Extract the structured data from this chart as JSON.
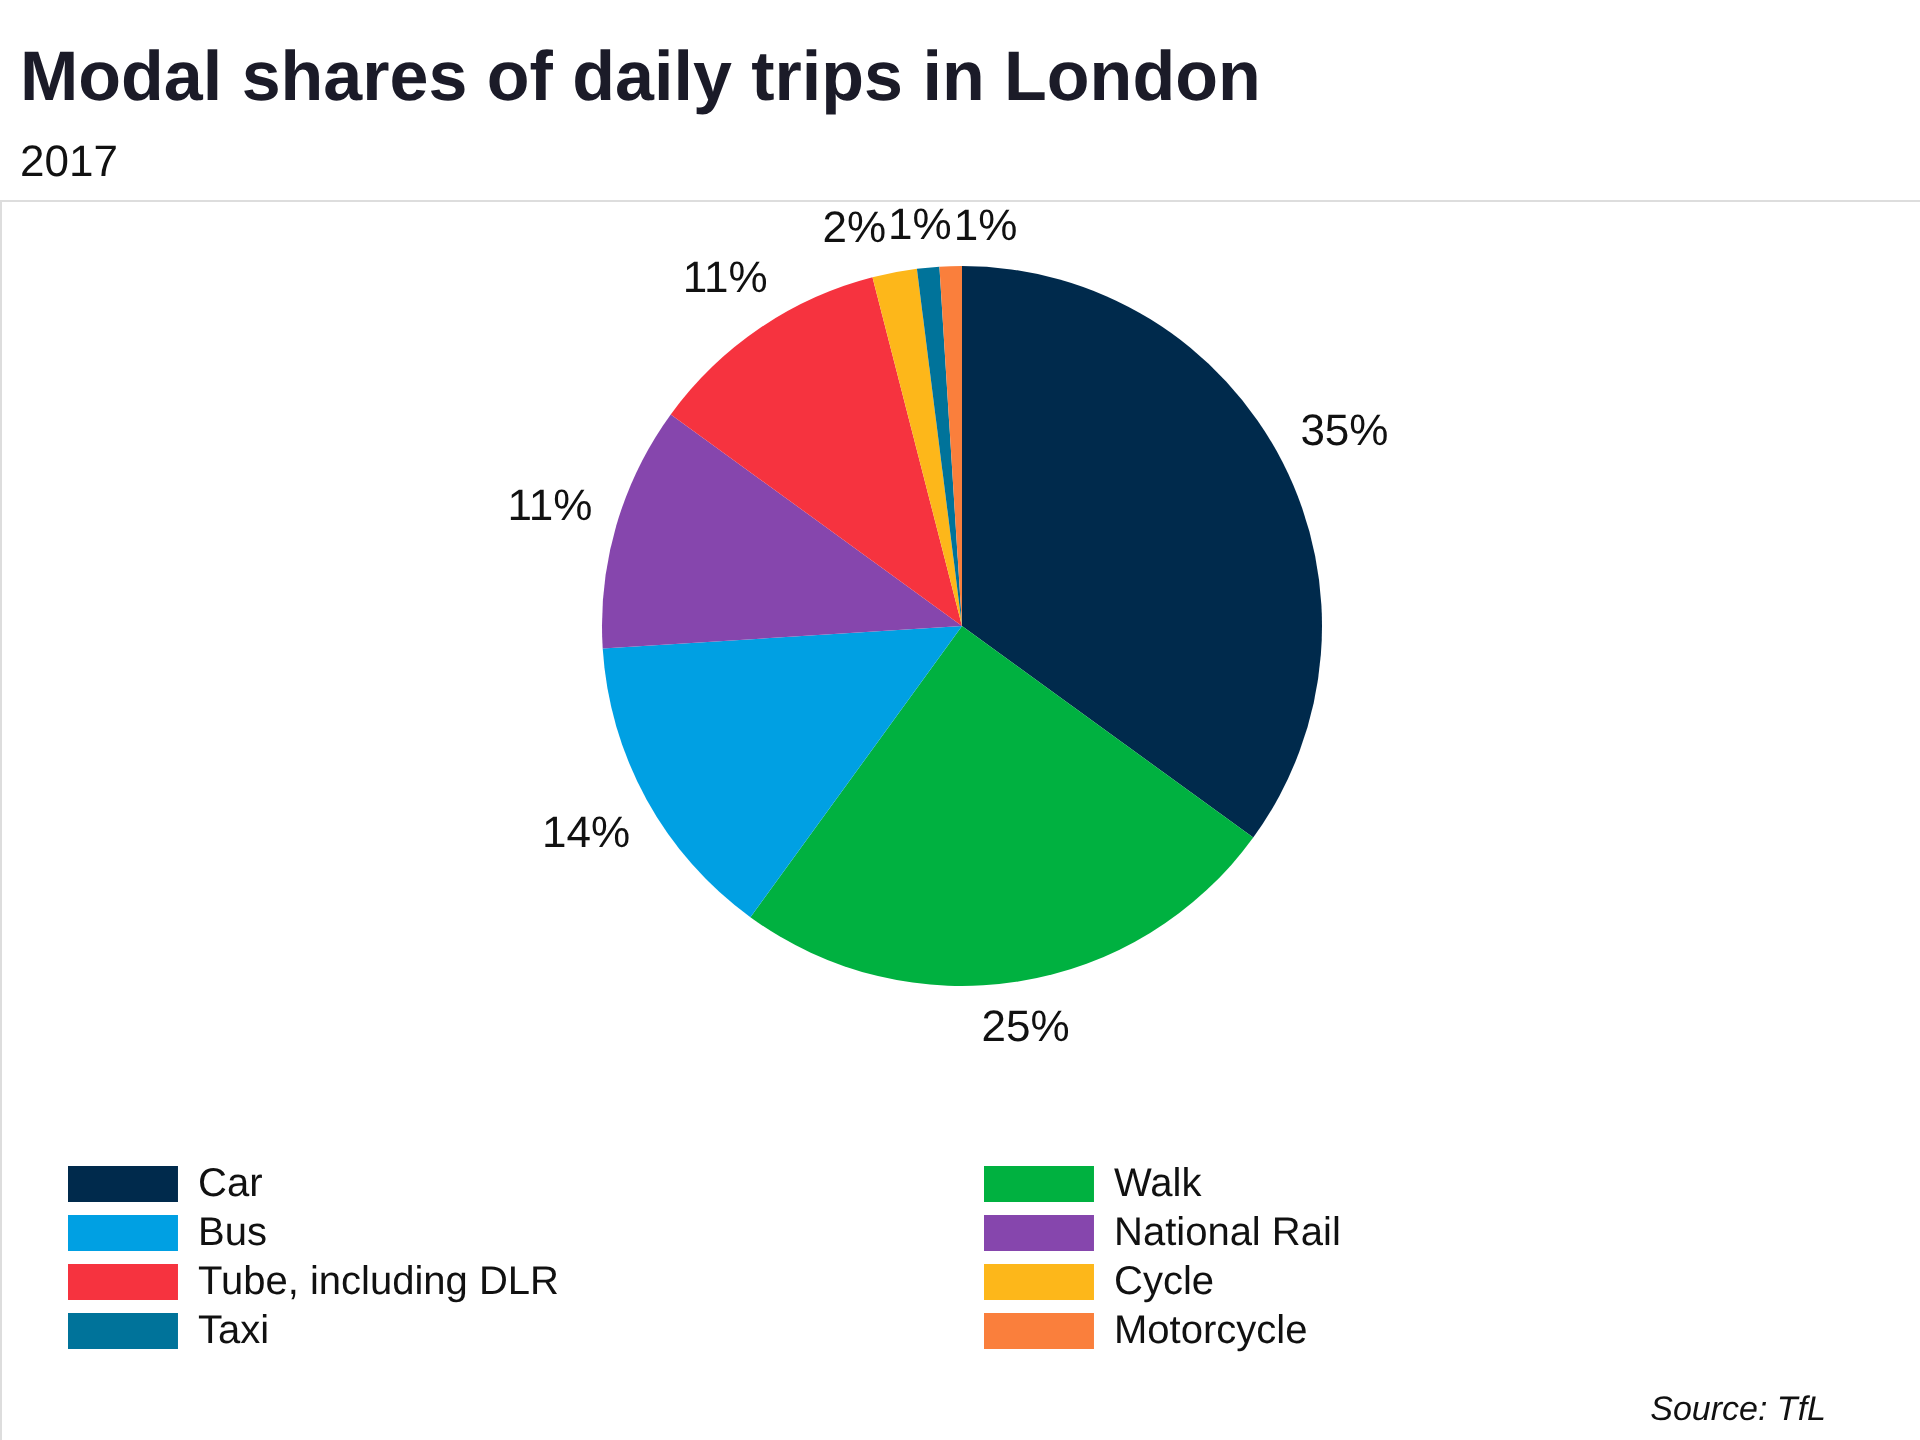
{
  "chart_data": {
    "type": "pie",
    "title": "Modal shares of daily trips in London",
    "subtitle": "2017",
    "categories": [
      "Car",
      "Walk",
      "Bus",
      "National Rail",
      "Tube, including DLR",
      "Cycle",
      "Taxi",
      "Motorcycle"
    ],
    "values": [
      35,
      25,
      14,
      11,
      11,
      2,
      1,
      1
    ],
    "colors": [
      "#002a4c",
      "#00b140",
      "#00a0e3",
      "#8646ad",
      "#f6333f",
      "#fdb71a",
      "#00739a",
      "#fa7f3c"
    ],
    "value_labels": [
      "35%",
      "25%",
      "14%",
      "11%",
      "11%",
      "2%",
      "1%",
      "1%"
    ],
    "legend": "bottom",
    "annotations": [
      "Source: TfL"
    ]
  }
}
